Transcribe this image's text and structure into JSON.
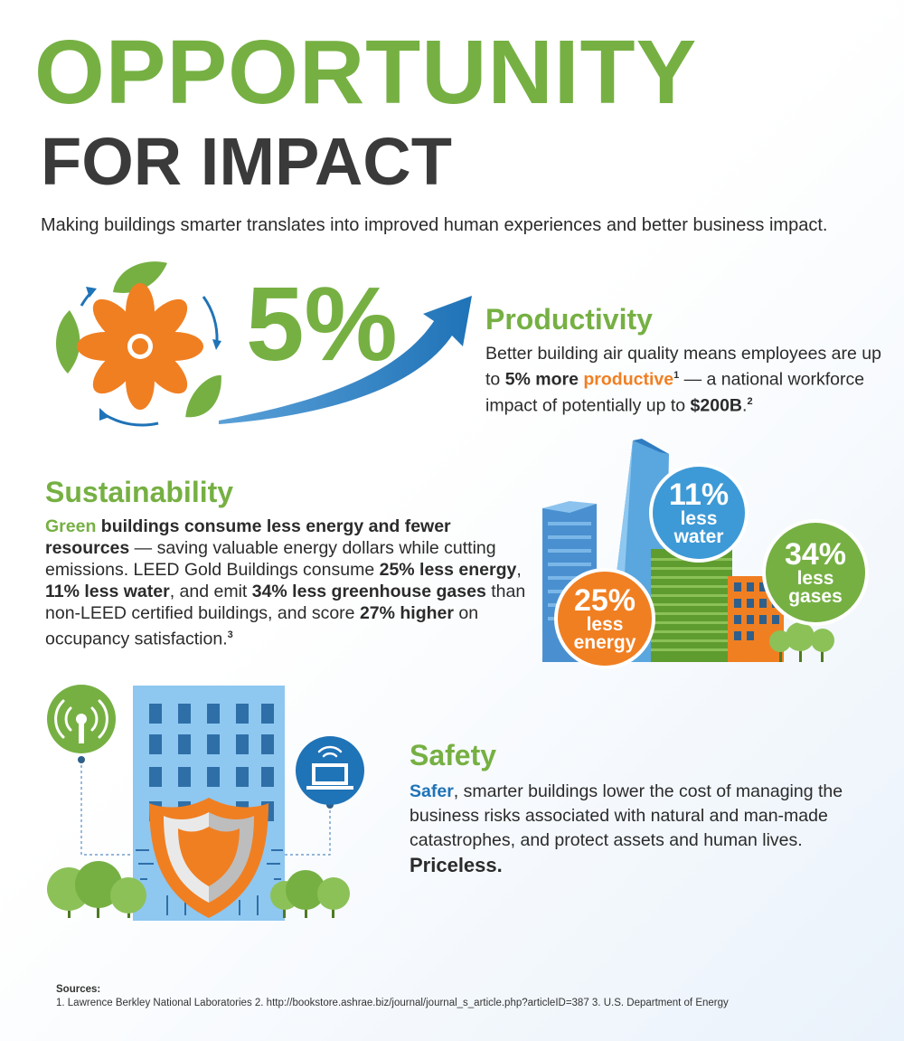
{
  "title": {
    "line1": "OPPORTUNITY",
    "line2": "FOR IMPACT"
  },
  "intro": "Making buildings smarter translates into improved human experiences and better business impact.",
  "productivity": {
    "big_stat": "5%",
    "title": "Productivity",
    "text_1": "Better building air quality means employees are up to ",
    "highlight_1": "5% more ",
    "highlight_2": "productive",
    "sup_1": "1",
    "text_2": " — a national workforce impact of potentially up to ",
    "highlight_3": "$200B",
    "text_3": ".",
    "sup_2": "2"
  },
  "sustainability": {
    "title": "Sustainability",
    "green_word": "Green",
    "bold_1": " buildings consume less energy and fewer resources",
    "text_1": " — saving valuable energy dollars while cutting emissions. LEED Gold Buildings consume ",
    "bold_2": "25% less energy",
    "text_2": ", ",
    "bold_3": "11% less water",
    "text_3": ", and emit ",
    "bold_4": "34% less greenhouse gases",
    "text_4": " than non-LEED certified buildings, and score ",
    "bold_5": "27% higher",
    "text_5": " on occupancy satisfaction.",
    "sup": "3",
    "bubbles": {
      "water": {
        "pct": "11%",
        "line1": "less",
        "line2": "water",
        "color": "#3e9ad6"
      },
      "gases": {
        "pct": "34%",
        "line1": "less",
        "line2": "gases",
        "color": "#76b043"
      },
      "energy": {
        "pct": "25%",
        "line1": "less",
        "line2": "energy",
        "color": "#f07f22"
      }
    }
  },
  "safety": {
    "title": "Safety",
    "blue_word": "Safer",
    "text_1": ", smarter buildings lower the cost of managing the business risks associated with natural and man-made catastrophes, and protect assets and human lives. ",
    "priceless": "Priceless."
  },
  "sources": {
    "title": "Sources:",
    "text": "1. Lawrence Berkley National Laboratories  2. http://bookstore.ashrae.biz/journal/journal_s_article.php?articleID=387  3. U.S. Department of Energy"
  },
  "colors": {
    "green": "#76b043",
    "orange": "#f07f22",
    "blue": "#1f73b7",
    "dark": "#3a3a3a"
  },
  "icons": [
    "recycle-arrows-icon",
    "fan-icon",
    "leaf-icon",
    "growth-arrow-icon",
    "city-buildings-illustration",
    "wifi-antenna-icon",
    "laptop-wifi-icon",
    "shield-icon",
    "tree-icon"
  ]
}
